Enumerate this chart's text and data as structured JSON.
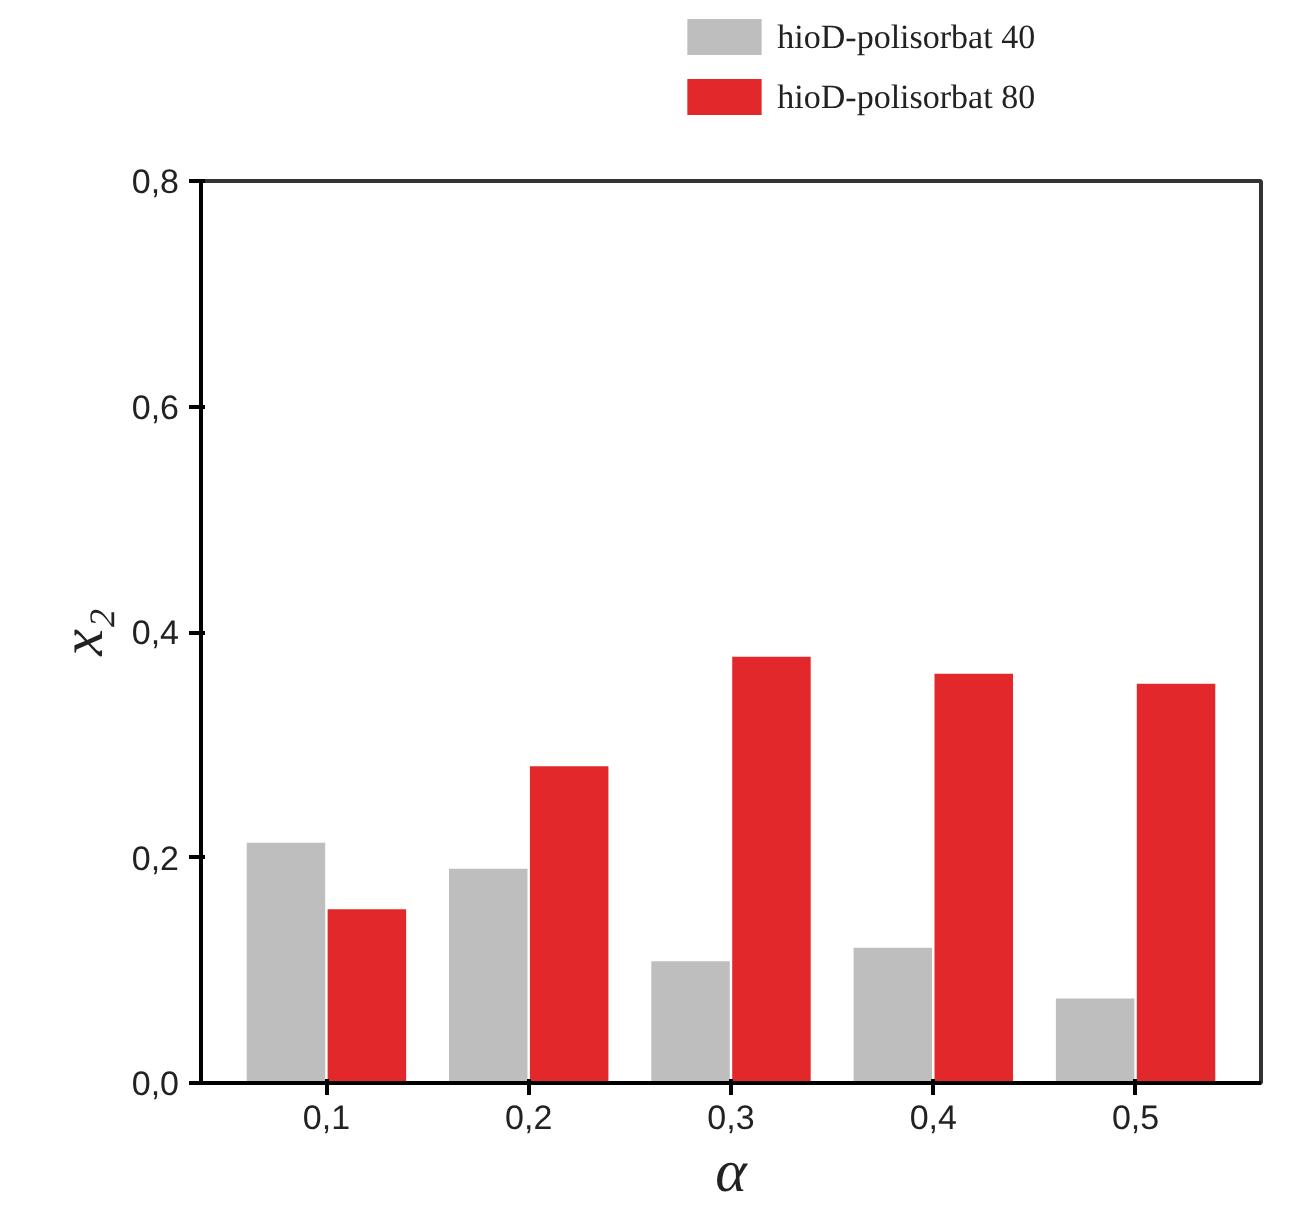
{
  "chart_data": {
    "type": "bar",
    "xlabel": "α",
    "ylabel": "x₂",
    "categories": [
      "0,1",
      "0,2",
      "0,3",
      "0,4",
      "0,5"
    ],
    "series": [
      {
        "name": "hioD-polisorbat 40",
        "color": "#bebebe",
        "values": [
          0.213,
          0.19,
          0.108,
          0.12,
          0.075
        ]
      },
      {
        "name": "hioD-polisorbat 80",
        "color": "#e2282b",
        "values": [
          0.154,
          0.281,
          0.378,
          0.363,
          0.354
        ]
      }
    ],
    "ylim": [
      0,
      0.8
    ],
    "yticks": [
      {
        "value": 0,
        "label": "0,0"
      },
      {
        "value": 0.2,
        "label": "0,2"
      },
      {
        "value": 0.4,
        "label": "0,4"
      },
      {
        "value": 0.6,
        "label": "0,6"
      },
      {
        "value": 0.8,
        "label": "0,8"
      }
    ],
    "legend": "top",
    "grid": false
  }
}
